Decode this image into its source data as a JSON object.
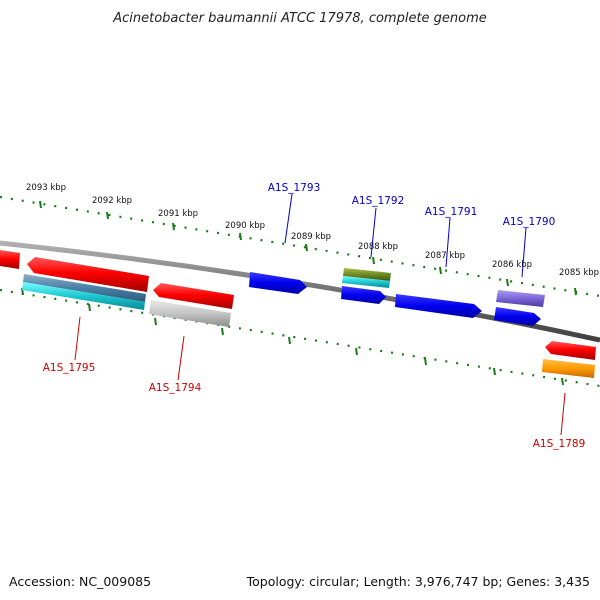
{
  "title": "Acinetobacter baumannii ATCC 17978, complete genome",
  "footer": {
    "accession": "Accession: NC_009085",
    "topology": "Topology: circular; Length: 3,976,747 bp; Genes: 3,435"
  },
  "colors": {
    "backbone": "#7a7a7a",
    "ruler": "#1a7a1a",
    "forward_label": "#0000cc",
    "reverse_label": "#cc0000"
  },
  "ruler_labels": [
    "2093 kbp",
    "2092 kbp",
    "2091 kbp",
    "2090 kbp",
    "2089 kbp",
    "2088 kbp",
    "2087 kbp",
    "2086 kbp",
    "2085 kbp"
  ],
  "genes_top": [
    "A1S_1793",
    "A1S_1792",
    "A1S_1791",
    "A1S_1790"
  ],
  "genes_bottom": [
    "A1S_1795",
    "A1S_1794",
    "A1S_1789"
  ]
}
